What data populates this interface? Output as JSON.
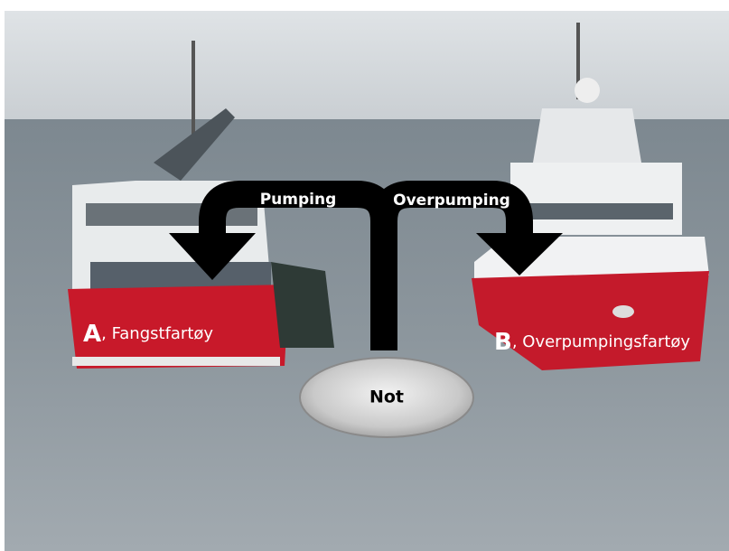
{
  "arrows": {
    "left": "Pumping",
    "right": "Overpumping"
  },
  "vessels": [
    {
      "letter": "A",
      "name": ", Fangstfartøy"
    },
    {
      "letter": "B",
      "name": ", Overpumpingsfartøy"
    }
  ],
  "center": {
    "label": "Not"
  }
}
